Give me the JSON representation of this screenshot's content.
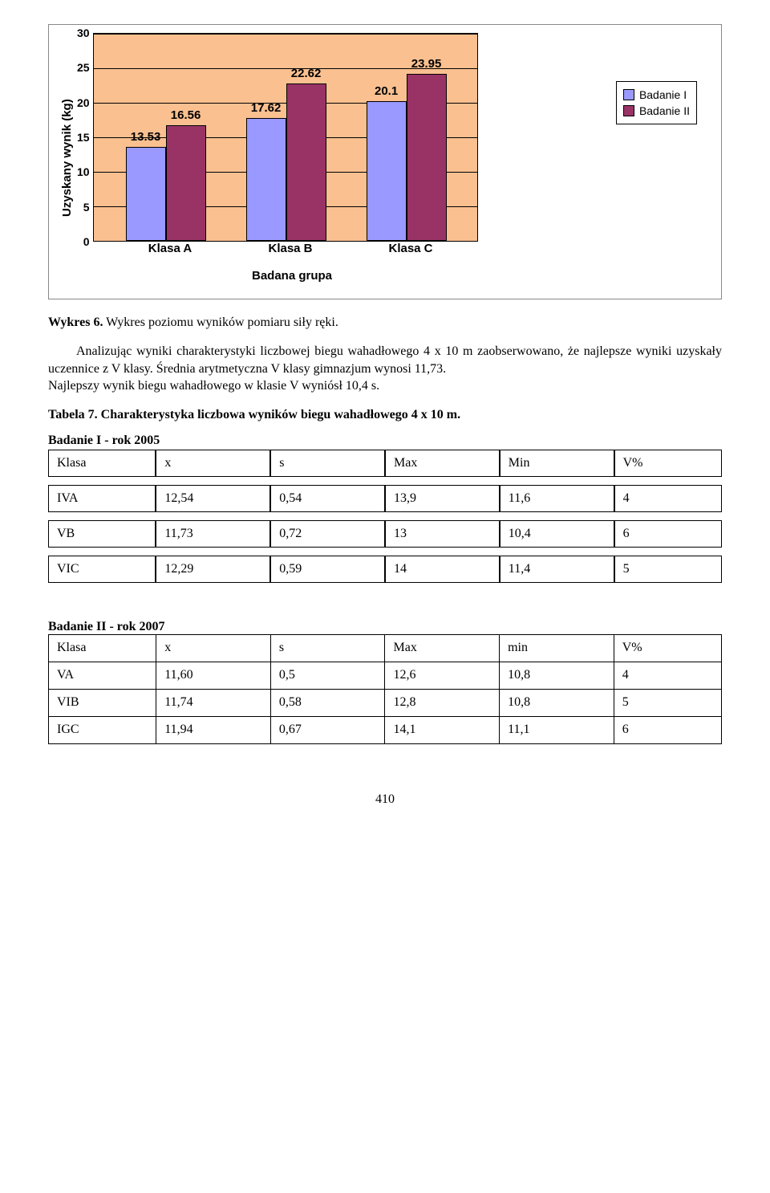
{
  "chart": {
    "type": "bar",
    "y_label": "Uzyskany wynik (kg)",
    "x_label": "Badana grupa",
    "ymax": 30,
    "ymin": 0,
    "ytick_step": 5,
    "yticks": [
      "30",
      "25",
      "20",
      "15",
      "10",
      "5",
      "0"
    ],
    "plot_bg": "#fac090",
    "grid_color": "#000000",
    "categories": [
      "Klasa A",
      "Klasa B",
      "Klasa C"
    ],
    "series": [
      {
        "name": "Badanie I",
        "color": "#9999ff"
      },
      {
        "name": "Badanie II",
        "color": "#993366"
      }
    ],
    "groups": [
      {
        "label": "Klasa A",
        "s1": 13.53,
        "s2": 16.56
      },
      {
        "label": "Klasa B",
        "s1": 17.62,
        "s2": 22.62
      },
      {
        "label": "Klasa C",
        "s1": 20.1,
        "s2": 23.95
      }
    ],
    "value_labels": {
      "g1a": "13.53",
      "g1b": "16.56",
      "g2a": "17.62",
      "g2b": "22.62",
      "g3a": "20.1",
      "g3b": "23.95"
    },
    "y_label_fontsize": 15,
    "x_label_fontsize": 15,
    "tick_fontsize": 14,
    "value_fontsize": 15
  },
  "caption": {
    "bold": "Wykres 6.",
    "rest": " Wykres poziomu wyników pomiaru siły ręki."
  },
  "paragraph": "Analizując wyniki charakterystyki liczbowej biegu wahadłowego 4 x 10 m zaobserwowano, że najlepsze wyniki uzyskały uczennice z V klasy. Średnia arytmetyczna V klasy gimnazjum wynosi 11,73.\nNajlepszy wynik biegu wahadłowego w klasie V wyniósł 10,4 s.",
  "table7": {
    "title_bold": "Tabela 7. Charakterystyka liczbowa wyników biegu wahadłowego  4 x 10 m.",
    "study1_label": "Badanie I - rok 2005",
    "study1_headers": [
      "Klasa",
      "x",
      "s",
      "Max",
      "Min",
      "V%"
    ],
    "study1_rows": [
      [
        "IVA",
        "12,54",
        "0,54",
        "13,9",
        "11,6",
        "4"
      ],
      [
        "VB",
        "11,73",
        "0,72",
        "13",
        "10,4",
        "6"
      ],
      [
        "VIC",
        "12,29",
        "0,59",
        "14",
        "11,4",
        "5"
      ]
    ],
    "study2_label": "Badanie II - rok 2007",
    "study2_headers": [
      "Klasa",
      "x",
      "s",
      "Max",
      "min",
      "V%"
    ],
    "study2_rows": [
      [
        "VA",
        "11,60",
        "0,5",
        "12,6",
        "10,8",
        "4"
      ],
      [
        "VIB",
        "11,74",
        "0,58",
        "12,8",
        "10,8",
        "5"
      ],
      [
        "IGC",
        "11,94",
        "0,67",
        "14,1",
        "11,1",
        "6"
      ]
    ],
    "col_widths": [
      "16%",
      "17%",
      "17%",
      "17%",
      "17%",
      "16%"
    ]
  },
  "page_number": "410"
}
